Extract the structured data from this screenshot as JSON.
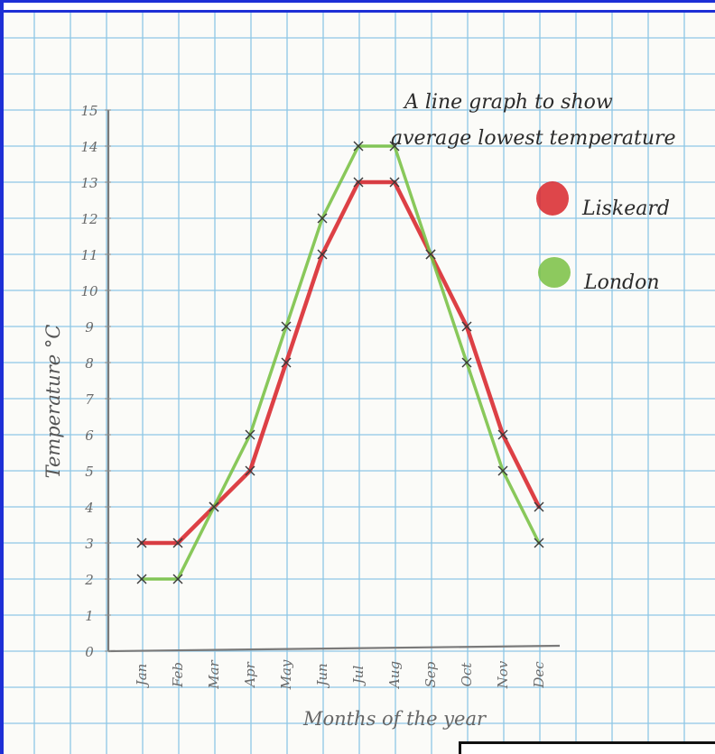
{
  "chart_data": {
    "type": "line",
    "title": "A line graph to show average lowest temperature",
    "xlabel": "Months of the year",
    "ylabel": "Temperature °C",
    "categories": [
      "Jan",
      "Feb",
      "Mar",
      "Apr",
      "May",
      "Jun",
      "Jul",
      "Aug",
      "Sep",
      "Oct",
      "Nov",
      "Dec"
    ],
    "ylim": [
      0,
      15
    ],
    "yticks": [
      0,
      1,
      2,
      3,
      4,
      5,
      6,
      7,
      8,
      9,
      10,
      11,
      12,
      13,
      14,
      15
    ],
    "grid": true,
    "legend_position": "top-right",
    "series": [
      {
        "name": "Liskeard",
        "color": "#d8262b",
        "values": [
          3,
          3,
          4,
          5,
          8,
          11,
          13,
          13,
          11,
          9,
          6,
          4
        ]
      },
      {
        "name": "London",
        "color": "#79c043",
        "values": [
          2,
          2,
          4,
          6,
          9,
          12,
          14,
          14,
          11,
          8,
          5,
          3
        ]
      }
    ]
  },
  "colors": {
    "grid": "#8ec7e6",
    "axis": "#7a7a7a",
    "pencil": "#3a3a3a",
    "frame": "#1d2fd6"
  }
}
